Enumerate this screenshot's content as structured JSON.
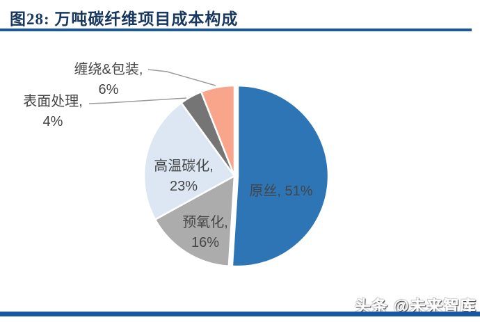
{
  "header": {
    "title": "图28: 万吨碳纤维项目成本构成"
  },
  "chart_data": {
    "type": "pie",
    "title": "万吨碳纤维项目成本构成",
    "unit": "%",
    "start_angle_deg": 0,
    "direction": "clockwise",
    "legend": "none",
    "label_color": "#454545",
    "leader_line_color": "#9C9C9C",
    "slices": [
      {
        "name": "原丝",
        "value": 51,
        "color": "#2E75B6",
        "exploded": true,
        "label_lines": [
          "原丝, 51%"
        ]
      },
      {
        "name": "预氧化",
        "value": 16,
        "color": "#ACACAC",
        "exploded": false,
        "label_lines": [
          "预氧化,",
          "16%"
        ]
      },
      {
        "name": "高温碳化",
        "value": 23,
        "color": "#DCE7F3",
        "exploded": false,
        "label_lines": [
          "高温碳化,",
          "23%"
        ]
      },
      {
        "name": "表面处理",
        "value": 4,
        "color": "#757575",
        "exploded": false,
        "label_lines": [
          "表面处理,",
          "4%"
        ]
      },
      {
        "name": "缠绕&包装",
        "value": 6,
        "color": "#F9A58C",
        "exploded": false,
        "label_lines": [
          "缠绕&包装,",
          "6%"
        ]
      }
    ]
  },
  "footer": {
    "watermark": "头条 @未来智库"
  },
  "colors": {
    "title_text": "#17375E",
    "rule_blue": "#1956A3",
    "slice_border": "#FFFFFF"
  }
}
